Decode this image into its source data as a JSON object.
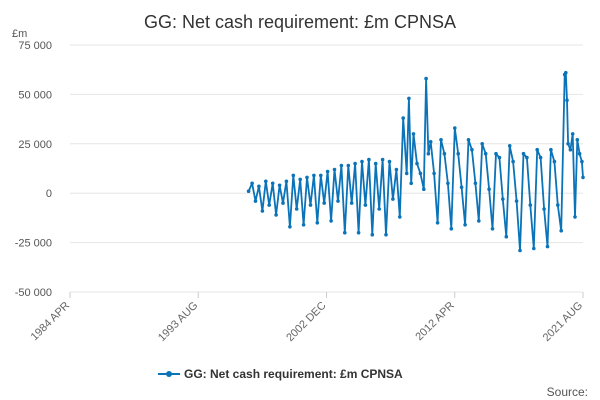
{
  "chart_data": {
    "type": "line",
    "title": "GG: Net cash requirement: £m CPNSA",
    "unit_label": "£m",
    "source_label": "Source:",
    "ylim": [
      -50000,
      75000
    ],
    "y_ticks": [
      {
        "value": 75000,
        "label": "75 000"
      },
      {
        "value": 50000,
        "label": "50 000"
      },
      {
        "value": 25000,
        "label": "25 000"
      },
      {
        "value": 0,
        "label": "0"
      },
      {
        "value": -25000,
        "label": "-25 000"
      },
      {
        "value": -50000,
        "label": "-50 000"
      }
    ],
    "x_range": [
      "1984-04",
      "2021-08"
    ],
    "x_ticks": [
      {
        "date": "1984-04",
        "label": "1984 APR"
      },
      {
        "date": "1993-08",
        "label": "1993 AUG"
      },
      {
        "date": "2002-12",
        "label": "2002 DEC"
      },
      {
        "date": "2012-04",
        "label": "2012 APR"
      },
      {
        "date": "2021-08",
        "label": "2021 AUG"
      }
    ],
    "grid": true,
    "legend_position": "bottom",
    "series": [
      {
        "name": "GG: Net cash requirement: £m CPNSA",
        "color": "#0b73b8",
        "points": [
          [
            "1997-04",
            1000
          ],
          [
            "1997-07",
            5000
          ],
          [
            "1997-10",
            -4000
          ],
          [
            "1998-01",
            3500
          ],
          [
            "1998-04",
            -9000
          ],
          [
            "1998-07",
            6000
          ],
          [
            "1998-10",
            -6000
          ],
          [
            "1999-01",
            5000
          ],
          [
            "1999-04",
            -11000
          ],
          [
            "1999-07",
            4000
          ],
          [
            "1999-10",
            -5000
          ],
          [
            "2000-01",
            6000
          ],
          [
            "2000-04",
            -17000
          ],
          [
            "2000-07",
            9000
          ],
          [
            "2000-10",
            -8000
          ],
          [
            "2001-01",
            7000
          ],
          [
            "2001-04",
            -16000
          ],
          [
            "2001-07",
            8000
          ],
          [
            "2001-10",
            -6000
          ],
          [
            "2002-01",
            9000
          ],
          [
            "2002-04",
            -15000
          ],
          [
            "2002-07",
            9000
          ],
          [
            "2002-10",
            -5000
          ],
          [
            "2003-01",
            11000
          ],
          [
            "2003-04",
            -14000
          ],
          [
            "2003-07",
            12000
          ],
          [
            "2003-10",
            -4000
          ],
          [
            "2004-01",
            14000
          ],
          [
            "2004-04",
            -20000
          ],
          [
            "2004-07",
            14000
          ],
          [
            "2004-10",
            -5000
          ],
          [
            "2005-01",
            15000
          ],
          [
            "2005-04",
            -20000
          ],
          [
            "2005-07",
            16000
          ],
          [
            "2005-10",
            -6000
          ],
          [
            "2006-01",
            17000
          ],
          [
            "2006-04",
            -21000
          ],
          [
            "2006-07",
            15000
          ],
          [
            "2006-10",
            -8000
          ],
          [
            "2007-01",
            17000
          ],
          [
            "2007-04",
            -21000
          ],
          [
            "2007-07",
            16000
          ],
          [
            "2007-10",
            -3000
          ],
          [
            "2008-01",
            12000
          ],
          [
            "2008-04",
            -12000
          ],
          [
            "2008-07",
            38000
          ],
          [
            "2008-10",
            10000
          ],
          [
            "2008-12",
            48000
          ],
          [
            "2009-02",
            5000
          ],
          [
            "2009-04",
            30000
          ],
          [
            "2009-07",
            15000
          ],
          [
            "2009-10",
            10000
          ],
          [
            "2010-01",
            2000
          ],
          [
            "2010-03",
            58000
          ],
          [
            "2010-05",
            20000
          ],
          [
            "2010-07",
            26000
          ],
          [
            "2010-10",
            10000
          ],
          [
            "2011-01",
            -15000
          ],
          [
            "2011-04",
            27000
          ],
          [
            "2011-07",
            20000
          ],
          [
            "2011-10",
            5000
          ],
          [
            "2012-01",
            -18000
          ],
          [
            "2012-04",
            33000
          ],
          [
            "2012-07",
            20000
          ],
          [
            "2012-10",
            3000
          ],
          [
            "2013-01",
            -16000
          ],
          [
            "2013-04",
            27000
          ],
          [
            "2013-07",
            22000
          ],
          [
            "2013-10",
            5000
          ],
          [
            "2014-01",
            -14000
          ],
          [
            "2014-04",
            25000
          ],
          [
            "2014-07",
            20000
          ],
          [
            "2014-10",
            2000
          ],
          [
            "2015-01",
            -18000
          ],
          [
            "2015-04",
            20000
          ],
          [
            "2015-07",
            18000
          ],
          [
            "2015-10",
            -3000
          ],
          [
            "2016-01",
            -22000
          ],
          [
            "2016-04",
            24000
          ],
          [
            "2016-07",
            16000
          ],
          [
            "2016-10",
            -4000
          ],
          [
            "2017-01",
            -29000
          ],
          [
            "2017-04",
            20000
          ],
          [
            "2017-07",
            18000
          ],
          [
            "2017-10",
            -6000
          ],
          [
            "2018-01",
            -28000
          ],
          [
            "2018-04",
            22000
          ],
          [
            "2018-07",
            18000
          ],
          [
            "2018-10",
            -8000
          ],
          [
            "2019-01",
            -27000
          ],
          [
            "2019-04",
            22000
          ],
          [
            "2019-07",
            16000
          ],
          [
            "2019-10",
            -6000
          ],
          [
            "2020-01",
            -19000
          ],
          [
            "2020-04",
            60000
          ],
          [
            "2020-05",
            61000
          ],
          [
            "2020-06",
            47000
          ],
          [
            "2020-07",
            25000
          ],
          [
            "2020-09",
            22000
          ],
          [
            "2020-11",
            30000
          ],
          [
            "2021-01",
            -12000
          ],
          [
            "2021-03",
            27000
          ],
          [
            "2021-05",
            20000
          ],
          [
            "2021-07",
            16000
          ],
          [
            "2021-08",
            8000
          ]
        ]
      }
    ]
  }
}
